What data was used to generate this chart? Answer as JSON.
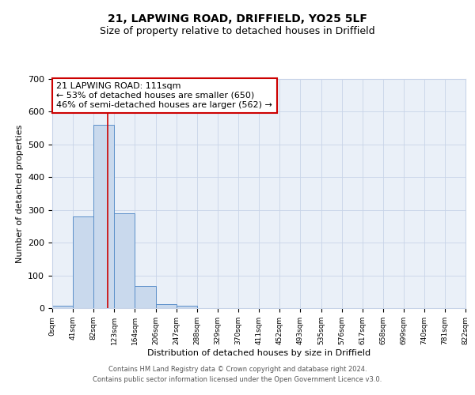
{
  "title": "21, LAPWING ROAD, DRIFFIELD, YO25 5LF",
  "subtitle": "Size of property relative to detached houses in Driffield",
  "xlabel": "Distribution of detached houses by size in Driffield",
  "ylabel": "Number of detached properties",
  "bar_edges": [
    0,
    41,
    82,
    123,
    164,
    206,
    247,
    288,
    329,
    370,
    411,
    452,
    493,
    535,
    576,
    617,
    658,
    699,
    740,
    781,
    822
  ],
  "bar_heights": [
    7,
    280,
    560,
    290,
    67,
    13,
    8,
    0,
    0,
    0,
    0,
    0,
    0,
    0,
    0,
    0,
    0,
    0,
    0,
    0
  ],
  "bar_color": "#c9d9ed",
  "bar_edge_color": "#5b8fc9",
  "property_line_x": 111,
  "property_line_color": "#cc0000",
  "annotation_line1": "21 LAPWING ROAD: 111sqm",
  "annotation_line2": "← 53% of detached houses are smaller (650)",
  "annotation_line3": "46% of semi-detached houses are larger (562) →",
  "ylim": [
    0,
    700
  ],
  "yticks": [
    0,
    100,
    200,
    300,
    400,
    500,
    600,
    700
  ],
  "tick_labels": [
    "0sqm",
    "41sqm",
    "82sqm",
    "123sqm",
    "164sqm",
    "206sqm",
    "247sqm",
    "288sqm",
    "329sqm",
    "370sqm",
    "411sqm",
    "452sqm",
    "493sqm",
    "535sqm",
    "576sqm",
    "617sqm",
    "658sqm",
    "699sqm",
    "740sqm",
    "781sqm",
    "822sqm"
  ],
  "background_color": "#ffffff",
  "plot_bg_color": "#eaf0f8",
  "grid_color": "#c8d4e8",
  "footer_line1": "Contains HM Land Registry data © Crown copyright and database right 2024.",
  "footer_line2": "Contains public sector information licensed under the Open Government Licence v3.0.",
  "title_fontsize": 10,
  "subtitle_fontsize": 9,
  "xlabel_fontsize": 8,
  "ylabel_fontsize": 8,
  "tick_fontsize": 6.5,
  "ytick_fontsize": 8,
  "annotation_fontsize": 8,
  "footer_fontsize": 6
}
